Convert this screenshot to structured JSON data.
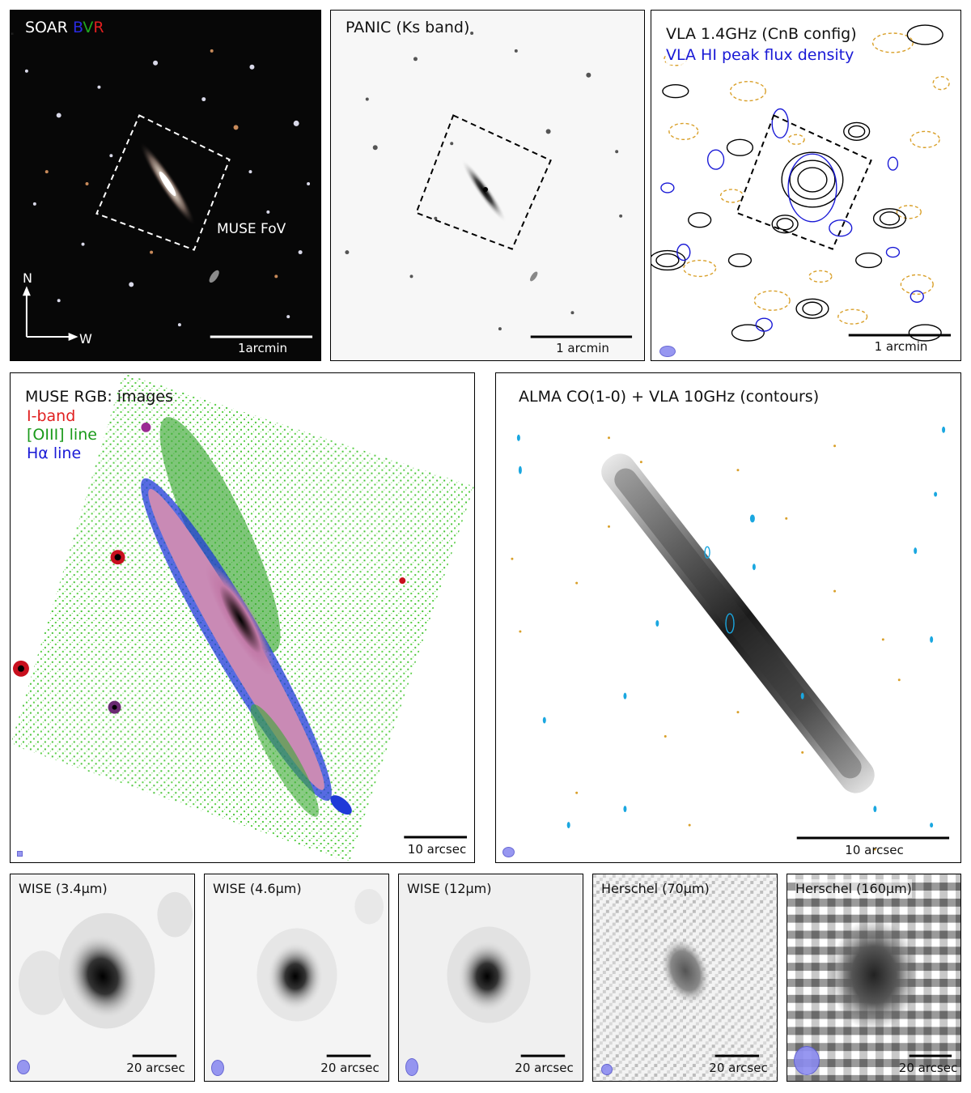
{
  "top_row": {
    "soar": {
      "label": "SOAR",
      "bands": [
        "B",
        "V",
        "R"
      ],
      "band_colors": [
        "#2a2ae0",
        "#1fa51f",
        "#e01f1f"
      ],
      "fov_label": "MUSE FoV",
      "compass_n": "N",
      "compass_w": "W",
      "scale_label": "1arcmin"
    },
    "panic": {
      "label": "PANIC (Ks band)",
      "scale_label": "1 arcmin"
    },
    "vla": {
      "label_1": "VLA 1.4GHz (CnB config)",
      "label_2": "VLA HI peak flux density",
      "label_2_color": "#1a1ad6",
      "scale_label": "1 arcmin"
    }
  },
  "middle_row": {
    "muse": {
      "title": "MUSE RGB: images",
      "line_1": "I-band",
      "line_1_color": "#e01f1f",
      "line_2": "[OIII] line",
      "line_2_color": "#1a9a1a",
      "line_3": "Hα line",
      "line_3_color": "#1a1ad6",
      "scale_label": "10 arcsec"
    },
    "alma": {
      "title": "ALMA CO(1-0) + VLA 10GHz (contours)",
      "scale_label": "10 arcsec"
    }
  },
  "bottom_row": [
    {
      "label": "WISE (3.4μm)",
      "scale_label": "20 arcsec"
    },
    {
      "label": "WISE (4.6μm)",
      "scale_label": "20 arcsec"
    },
    {
      "label": "WISE (12μm)",
      "scale_label": "20 arcsec"
    },
    {
      "label": "Herschel (70μm)",
      "scale_label": "20 arcsec"
    },
    {
      "label": "Herschel (160μm)",
      "scale_label": "20 arcsec"
    }
  ],
  "colors": {
    "vla_positive_contour": "#000000",
    "vla_negative_contour": "#d9a02a",
    "hi_contour": "#1a1ad6",
    "alma_contour_positive": "#1aa7e0",
    "alma_contour_negative": "#d9a02a"
  }
}
